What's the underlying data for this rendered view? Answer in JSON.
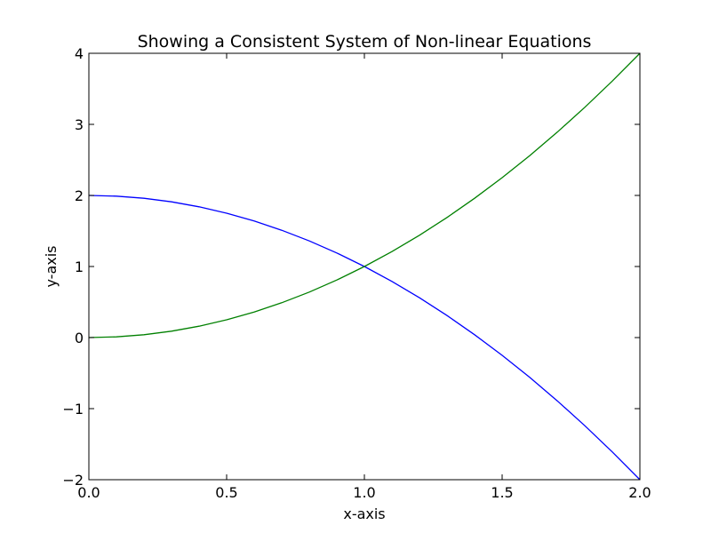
{
  "chart_data": {
    "type": "line",
    "title": "Showing a Consistent System of Non-linear Equations",
    "xlabel": "x-axis",
    "ylabel": "y-axis",
    "xlim": [
      0.0,
      2.0
    ],
    "ylim": [
      -2,
      4
    ],
    "xticks": [
      0.0,
      0.5,
      1.0,
      1.5,
      2.0
    ],
    "xtick_labels": [
      "0.0",
      "0.5",
      "1.0",
      "1.5",
      "2.0"
    ],
    "yticks": [
      -2,
      -1,
      0,
      1,
      2,
      3,
      4
    ],
    "ytick_labels": [
      "−2",
      "−1",
      "0",
      "1",
      "2",
      "3",
      "4"
    ],
    "grid": false,
    "legend": false,
    "x": [
      0.0,
      0.1,
      0.2,
      0.3,
      0.4,
      0.5,
      0.6,
      0.7,
      0.8,
      0.9,
      1.0,
      1.1,
      1.2,
      1.3,
      1.4,
      1.5,
      1.6,
      1.7,
      1.8,
      1.9,
      2.0
    ],
    "series": [
      {
        "color": "#0000ff",
        "values": [
          2.0,
          1.99,
          1.96,
          1.91,
          1.84,
          1.75,
          1.64,
          1.51,
          1.36,
          1.19,
          1.0,
          0.79,
          0.56,
          0.31,
          0.04,
          -0.25,
          -0.56,
          -0.89,
          -1.24,
          -1.61,
          -2.0
        ]
      },
      {
        "color": "#008000",
        "values": [
          0.0,
          0.01,
          0.04,
          0.09,
          0.16,
          0.25,
          0.36,
          0.49,
          0.64,
          0.81,
          1.0,
          1.21,
          1.44,
          1.69,
          1.96,
          2.25,
          2.56,
          2.89,
          3.24,
          3.61,
          4.0
        ]
      }
    ]
  }
}
